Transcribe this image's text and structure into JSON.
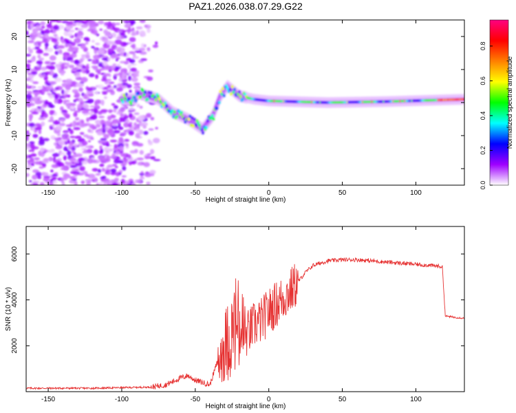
{
  "figure": {
    "title": "PAZ1.2026.038.07.29.G22"
  },
  "chart_data": [
    {
      "type": "heatmap",
      "name": "spectrogram",
      "xlabel": "Height of straight line (km)",
      "ylabel": "Frequency (Hz)",
      "xlim": [
        -165,
        133
      ],
      "ylim": [
        -25,
        25
      ],
      "xticks": [
        -150,
        -100,
        -50,
        0,
        50,
        100
      ],
      "yticks": [
        -20,
        -10,
        0,
        10,
        20
      ],
      "description_of_signal": [
        {
          "height_km": -90,
          "freq_hz": 3
        },
        {
          "height_km": -75,
          "freq_hz": 1
        },
        {
          "height_km": -65,
          "freq_hz": -3
        },
        {
          "height_km": -55,
          "freq_hz": -5
        },
        {
          "height_km": -45,
          "freq_hz": -8
        },
        {
          "height_km": -38,
          "freq_hz": -4
        },
        {
          "height_km": -33,
          "freq_hz": 2
        },
        {
          "height_km": -28,
          "freq_hz": 5
        },
        {
          "height_km": -20,
          "freq_hz": 2
        },
        {
          "height_km": -10,
          "freq_hz": 1
        },
        {
          "height_km": 0,
          "freq_hz": 0.5
        },
        {
          "height_km": 40,
          "freq_hz": 0
        },
        {
          "height_km": 80,
          "freq_hz": 0.3
        },
        {
          "height_km": 133,
          "freq_hz": 1
        }
      ],
      "colorbar": {
        "label": "Normalized spectral amplitude",
        "range": [
          0.0,
          0.95
        ],
        "ticks": [
          "0.0",
          "0.2",
          "0.4",
          "0.6",
          "0.8"
        ],
        "tick_values": [
          0.0,
          0.2,
          0.4,
          0.6,
          0.8
        ],
        "colors": [
          "#ffffff",
          "#9f00ff",
          "#0000ff",
          "#00ffff",
          "#00ff00",
          "#ffff00",
          "#ff8000",
          "#ff0000",
          "#ff0080"
        ]
      }
    },
    {
      "type": "line",
      "name": "snr",
      "xlabel": "Height of straight line (km)",
      "ylabel": "SNR (10 * v/v)",
      "xlim": [
        -165,
        133
      ],
      "ylim": [
        0,
        7200
      ],
      "xticks": [
        -150,
        -100,
        -50,
        0,
        50,
        100
      ],
      "yticks": [
        2000,
        4000,
        6000
      ],
      "line_color": "#e63232",
      "series": [
        {
          "name": "SNR",
          "x": [
            -165,
            -120,
            -80,
            -70,
            -60,
            -55,
            -50,
            -45,
            -40,
            -35,
            -30,
            -25,
            -22,
            -20,
            -15,
            -10,
            -5,
            0,
            5,
            10,
            15,
            20,
            25,
            30,
            35,
            40,
            50,
            60,
            70,
            80,
            90,
            100,
            110,
            118,
            120,
            125,
            133
          ],
          "y": [
            150,
            150,
            200,
            300,
            600,
            700,
            500,
            400,
            300,
            1300,
            2000,
            2500,
            3000,
            2600,
            2500,
            2900,
            3100,
            3500,
            3800,
            4100,
            4400,
            4800,
            5200,
            5500,
            5600,
            5700,
            5750,
            5750,
            5700,
            5650,
            5600,
            5550,
            5500,
            5450,
            3300,
            3250,
            3200
          ]
        }
      ]
    }
  ]
}
